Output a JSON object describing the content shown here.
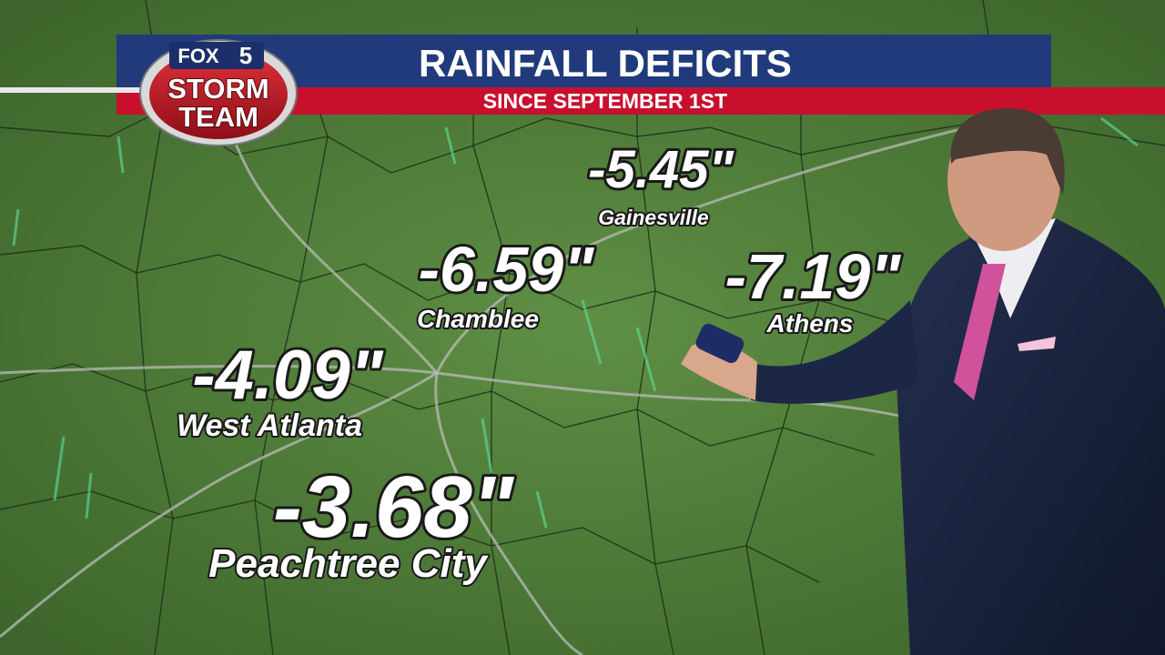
{
  "header": {
    "title": "RAINFALL DEFICITS",
    "subtitle": "SINCE SEPTEMBER 1ST"
  },
  "logo": {
    "network": "FOX",
    "channel": "5",
    "line1": "STORM",
    "line2": "TEAM"
  },
  "locations": [
    {
      "value": "-5.45\"",
      "name": "Gainesville"
    },
    {
      "value": "-6.59\"",
      "name": "Chamblee"
    },
    {
      "value": "-7.19\"",
      "name": "Athens"
    },
    {
      "value": "-4.09\"",
      "name": "West Atlanta"
    },
    {
      "value": "-3.68\"",
      "name": "Peachtree City"
    }
  ]
}
